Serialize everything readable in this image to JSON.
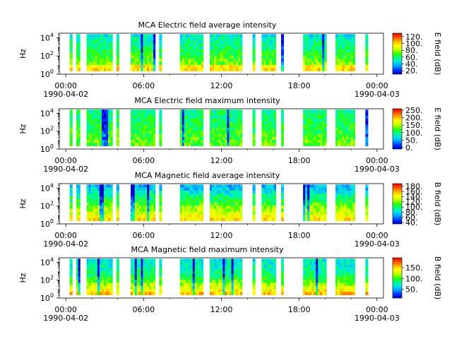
{
  "chart_data": [
    {
      "type": "heatmap",
      "title": "MCA  Electric field average intensity",
      "ylabel": "Hz",
      "ytick_labels": [
        "10^0",
        "10^2",
        "10^4"
      ],
      "ylog_range_decades": [
        0,
        4.5
      ],
      "xtick_labels": [
        "00:00",
        "06:00",
        "12:00",
        "18:00",
        "00:00"
      ],
      "xtick_hours": [
        0,
        6,
        12,
        18,
        24
      ],
      "date_start": "1990-04-02",
      "date_end": "1990-04-03",
      "x_range_hours": [
        -0.5,
        24.5
      ],
      "colorbar_label": "E field (dB)",
      "colorbar_ticks": [
        "20.",
        "40.",
        "60.",
        "80.",
        "100.",
        "120."
      ],
      "colorbar_tick_values": [
        20,
        40,
        60,
        80,
        100,
        120
      ],
      "colorbar_range": [
        10,
        130
      ],
      "data_intervals_hours": [
        [
          0.3,
          0.5
        ],
        [
          0.8,
          1.1
        ],
        [
          1.6,
          3.6
        ],
        [
          3.9,
          4.1
        ],
        [
          5.0,
          6.9
        ],
        [
          7.2,
          7.4
        ],
        [
          8.8,
          10.6
        ],
        [
          11.1,
          13.6
        ],
        [
          14.4,
          14.6
        ],
        [
          15.1,
          16.2
        ],
        [
          16.6,
          16.8
        ],
        [
          18.3,
          20.1
        ],
        [
          20.8,
          22.3
        ],
        [
          23.1,
          23.3
        ]
      ]
    },
    {
      "type": "heatmap",
      "title": "MCA  Electric field maximum intensity",
      "ylabel": "Hz",
      "ytick_labels": [
        "10^0",
        "10^2",
        "10^4"
      ],
      "ylog_range_decades": [
        0,
        4.5
      ],
      "xtick_labels": [
        "00:00",
        "06:00",
        "12:00",
        "18:00",
        "00:00"
      ],
      "xtick_hours": [
        0,
        6,
        12,
        18,
        24
      ],
      "date_start": "1990-04-02",
      "date_end": "1990-04-03",
      "x_range_hours": [
        -0.5,
        24.5
      ],
      "colorbar_label": "E field (dB)",
      "colorbar_ticks": [
        "0.",
        "50.",
        "100.",
        "150.",
        "200.",
        "250."
      ],
      "colorbar_tick_values": [
        0,
        50,
        100,
        150,
        200,
        250
      ],
      "colorbar_range": [
        -10,
        260
      ],
      "data_intervals_hours": [
        [
          0.3,
          0.5
        ],
        [
          0.8,
          1.1
        ],
        [
          1.6,
          3.6
        ],
        [
          3.9,
          4.1
        ],
        [
          5.0,
          6.9
        ],
        [
          7.2,
          7.4
        ],
        [
          8.8,
          10.6
        ],
        [
          11.1,
          13.6
        ],
        [
          14.4,
          14.6
        ],
        [
          15.1,
          16.2
        ],
        [
          16.6,
          16.8
        ],
        [
          18.3,
          20.1
        ],
        [
          20.8,
          22.3
        ],
        [
          23.1,
          23.3
        ]
      ]
    },
    {
      "type": "heatmap",
      "title": "MCA  Magnetic field average intensity",
      "ylabel": "Hz",
      "ytick_labels": [
        "10^0",
        "10^2",
        "10^4"
      ],
      "ylog_range_decades": [
        0,
        4.5
      ],
      "xtick_labels": [
        "00:00",
        "06:00",
        "12:00",
        "18:00",
        "00:00"
      ],
      "xtick_hours": [
        0,
        6,
        12,
        18,
        24
      ],
      "date_start": "1990-04-02",
      "date_end": "1990-04-03",
      "x_range_hours": [
        -0.5,
        24.5
      ],
      "colorbar_label": "B field (dB)",
      "colorbar_ticks": [
        "40.",
        "60.",
        "80.",
        "100.",
        "120.",
        "140.",
        "160.",
        "180."
      ],
      "colorbar_tick_values": [
        40,
        60,
        80,
        100,
        120,
        140,
        160,
        180
      ],
      "colorbar_range": [
        35,
        190
      ],
      "data_intervals_hours": [
        [
          0.3,
          0.5
        ],
        [
          0.8,
          1.1
        ],
        [
          1.6,
          3.6
        ],
        [
          3.9,
          4.1
        ],
        [
          5.0,
          6.9
        ],
        [
          7.2,
          7.4
        ],
        [
          8.8,
          10.6
        ],
        [
          11.1,
          13.6
        ],
        [
          14.4,
          14.6
        ],
        [
          15.1,
          16.2
        ],
        [
          16.6,
          16.8
        ],
        [
          18.3,
          20.1
        ],
        [
          20.8,
          22.3
        ],
        [
          23.1,
          23.3
        ]
      ]
    },
    {
      "type": "heatmap",
      "title": "MCA  Magnetic field maximum intensity",
      "ylabel": "Hz",
      "ytick_labels": [
        "10^0",
        "10^2",
        "10^4"
      ],
      "ylog_range_decades": [
        0,
        4.5
      ],
      "xtick_labels": [
        "00:00",
        "06:00",
        "12:00",
        "18:00",
        "00:00"
      ],
      "xtick_hours": [
        0,
        6,
        12,
        18,
        24
      ],
      "date_start": "1990-04-02",
      "date_end": "1990-04-03",
      "x_range_hours": [
        -0.5,
        24.5
      ],
      "colorbar_label": "B field (dB)",
      "colorbar_ticks": [
        "50.",
        "100.",
        "150."
      ],
      "colorbar_tick_values": [
        50,
        100,
        150
      ],
      "colorbar_range": [
        10,
        195
      ],
      "data_intervals_hours": [
        [
          0.3,
          0.5
        ],
        [
          0.8,
          1.1
        ],
        [
          1.6,
          3.6
        ],
        [
          3.9,
          4.1
        ],
        [
          5.0,
          6.9
        ],
        [
          7.2,
          7.4
        ],
        [
          8.8,
          10.6
        ],
        [
          11.1,
          13.6
        ],
        [
          14.4,
          14.6
        ],
        [
          15.1,
          16.2
        ],
        [
          16.6,
          16.8
        ],
        [
          18.3,
          20.1
        ],
        [
          20.8,
          22.3
        ],
        [
          23.1,
          23.3
        ]
      ]
    }
  ],
  "colormap_stops": [
    "#0000cc",
    "#0033ff",
    "#00a0ff",
    "#00e5e5",
    "#00ff80",
    "#33ff00",
    "#c8ff00",
    "#ffff00",
    "#ffb000",
    "#ff5000",
    "#e00000"
  ]
}
